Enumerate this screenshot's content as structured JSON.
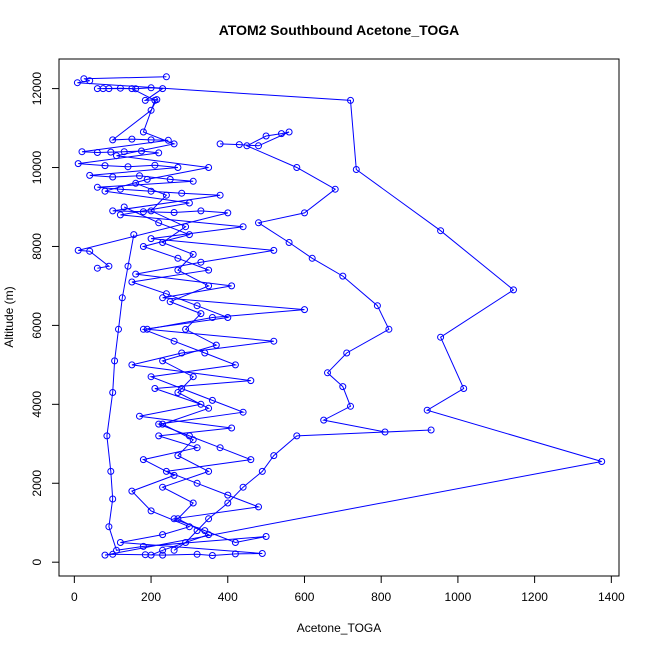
{
  "chart_data": {
    "type": "scatter",
    "title": "ATOM2 Southbound Acetone_TOGA",
    "xlabel": "Acetone_TOGA",
    "ylabel": "Altitude (m)",
    "xlim": [
      -40,
      1420
    ],
    "ylim": [
      -350,
      12750
    ],
    "xticks": [
      0,
      200,
      400,
      600,
      800,
      1000,
      1200,
      1400
    ],
    "yticks": [
      0,
      2000,
      4000,
      6000,
      8000,
      10000,
      12000
    ],
    "grid": false,
    "legend": "none",
    "color": "#0000ff",
    "marker": "open-circle",
    "connected": true,
    "series": [
      {
        "points": [
          [
            240,
            12300
          ],
          [
            25,
            12250
          ],
          [
            40,
            12200
          ],
          [
            8,
            12150
          ],
          [
            720,
            11700
          ],
          [
            735,
            9950
          ],
          [
            955,
            8400
          ],
          [
            1145,
            6900
          ],
          [
            955,
            5700
          ],
          [
            1015,
            4400
          ],
          [
            920,
            3850
          ],
          [
            1375,
            2550
          ],
          [
            80,
            180
          ],
          [
            100,
            200
          ],
          [
            185,
            190
          ],
          [
            230,
            180
          ],
          [
            320,
            200
          ],
          [
            360,
            170
          ],
          [
            420,
            210
          ],
          [
            490,
            220
          ],
          [
            120,
            500
          ],
          [
            230,
            700
          ],
          [
            300,
            900
          ],
          [
            200,
            1300
          ],
          [
            150,
            1800
          ],
          [
            260,
            2200
          ],
          [
            180,
            2600
          ],
          [
            320,
            2900
          ],
          [
            220,
            3200
          ],
          [
            410,
            3400
          ],
          [
            170,
            3700
          ],
          [
            330,
            4000
          ],
          [
            210,
            4400
          ],
          [
            460,
            4600
          ],
          [
            150,
            5000
          ],
          [
            280,
            5300
          ],
          [
            520,
            5600
          ],
          [
            190,
            5900
          ],
          [
            360,
            6200
          ],
          [
            600,
            6400
          ],
          [
            230,
            6700
          ],
          [
            410,
            7000
          ],
          [
            160,
            7300
          ],
          [
            330,
            7600
          ],
          [
            520,
            7900
          ],
          [
            200,
            8200
          ],
          [
            440,
            8500
          ],
          [
            120,
            8800
          ],
          [
            300,
            9100
          ],
          [
            80,
            9400
          ],
          [
            190,
            9700
          ],
          [
            350,
            10000
          ],
          [
            110,
            10300
          ],
          [
            260,
            10600
          ],
          [
            180,
            10900
          ],
          [
            210,
            11700
          ],
          [
            150,
            12000
          ],
          [
            90,
            12000
          ],
          [
            60,
            12000
          ]
        ]
      },
      {
        "points": [
          [
            75,
            12000
          ],
          [
            120,
            12010
          ],
          [
            160,
            11995
          ],
          [
            200,
            12020
          ],
          [
            230,
            12000
          ],
          [
            185,
            11700
          ],
          [
            215,
            11720
          ],
          [
            200,
            11450
          ],
          [
            100,
            10700
          ],
          [
            150,
            10720
          ],
          [
            200,
            10700
          ],
          [
            245,
            10690
          ],
          [
            20,
            10400
          ],
          [
            60,
            10380
          ],
          [
            95,
            10390
          ],
          [
            130,
            10400
          ],
          [
            175,
            10420
          ],
          [
            220,
            10370
          ],
          [
            10,
            10100
          ],
          [
            80,
            10050
          ],
          [
            140,
            10020
          ],
          [
            210,
            10060
          ],
          [
            270,
            10000
          ],
          [
            40,
            9800
          ],
          [
            100,
            9760
          ],
          [
            170,
            9790
          ],
          [
            250,
            9700
          ],
          [
            310,
            9650
          ],
          [
            60,
            9500
          ],
          [
            120,
            9450
          ],
          [
            200,
            9400
          ],
          [
            280,
            9350
          ],
          [
            380,
            9300
          ],
          [
            100,
            8900
          ],
          [
            180,
            8880
          ],
          [
            260,
            8860
          ],
          [
            330,
            8900
          ],
          [
            400,
            8850
          ],
          [
            10,
            7900
          ],
          [
            40,
            7880
          ],
          [
            90,
            7500
          ],
          [
            60,
            7450
          ]
        ]
      },
      {
        "points": [
          [
            380,
            10600
          ],
          [
            430,
            10580
          ],
          [
            480,
            10550
          ],
          [
            560,
            10900
          ],
          [
            540,
            10860
          ],
          [
            500,
            10800
          ],
          [
            450,
            10550
          ],
          [
            580,
            10000
          ],
          [
            680,
            9450
          ],
          [
            600,
            8850
          ],
          [
            480,
            8600
          ],
          [
            560,
            8100
          ],
          [
            620,
            7700
          ],
          [
            700,
            7250
          ],
          [
            790,
            6500
          ],
          [
            820,
            5900
          ],
          [
            710,
            5300
          ],
          [
            660,
            4800
          ],
          [
            700,
            4450
          ],
          [
            720,
            3950
          ],
          [
            650,
            3600
          ],
          [
            810,
            3300
          ],
          [
            930,
            3350
          ],
          [
            580,
            3200
          ],
          [
            520,
            2700
          ],
          [
            490,
            2300
          ],
          [
            440,
            1900
          ],
          [
            400,
            1500
          ],
          [
            350,
            1100
          ],
          [
            320,
            800
          ],
          [
            290,
            500
          ],
          [
            260,
            300
          ]
        ]
      },
      {
        "points": [
          [
            130,
            9000
          ],
          [
            220,
            8600
          ],
          [
            300,
            8300
          ],
          [
            180,
            8000
          ],
          [
            270,
            7700
          ],
          [
            350,
            7400
          ],
          [
            150,
            7100
          ],
          [
            240,
            6800
          ],
          [
            320,
            6500
          ],
          [
            400,
            6200
          ],
          [
            180,
            5900
          ],
          [
            260,
            5600
          ],
          [
            340,
            5300
          ],
          [
            420,
            5000
          ],
          [
            200,
            4700
          ],
          [
            280,
            4400
          ],
          [
            360,
            4100
          ],
          [
            440,
            3800
          ],
          [
            220,
            3500
          ],
          [
            300,
            3200
          ],
          [
            380,
            2900
          ],
          [
            460,
            2600
          ],
          [
            240,
            2300
          ],
          [
            320,
            2000
          ],
          [
            400,
            1700
          ],
          [
            480,
            1400
          ],
          [
            260,
            1100
          ],
          [
            340,
            800
          ],
          [
            420,
            500
          ],
          [
            500,
            650
          ],
          [
            180,
            400
          ],
          [
            110,
            300
          ],
          [
            90,
            900
          ],
          [
            100,
            1600
          ],
          [
            95,
            2300
          ],
          [
            85,
            3200
          ],
          [
            100,
            4300
          ],
          [
            105,
            5100
          ],
          [
            115,
            5900
          ],
          [
            125,
            6700
          ],
          [
            140,
            7500
          ],
          [
            155,
            8300
          ]
        ]
      },
      {
        "points": [
          [
            160,
            9600
          ],
          [
            240,
            9300
          ],
          [
            200,
            8900
          ],
          [
            290,
            8500
          ],
          [
            230,
            8100
          ],
          [
            310,
            7800
          ],
          [
            270,
            7400
          ],
          [
            350,
            7000
          ],
          [
            250,
            6600
          ],
          [
            330,
            6300
          ],
          [
            290,
            5900
          ],
          [
            370,
            5500
          ],
          [
            230,
            5100
          ],
          [
            310,
            4700
          ],
          [
            270,
            4300
          ],
          [
            350,
            3900
          ],
          [
            230,
            3500
          ],
          [
            310,
            3100
          ],
          [
            270,
            2700
          ],
          [
            350,
            2300
          ],
          [
            230,
            1900
          ],
          [
            310,
            1500
          ],
          [
            270,
            1100
          ],
          [
            350,
            700
          ],
          [
            230,
            300
          ],
          [
            200,
            180
          ]
        ]
      }
    ]
  }
}
